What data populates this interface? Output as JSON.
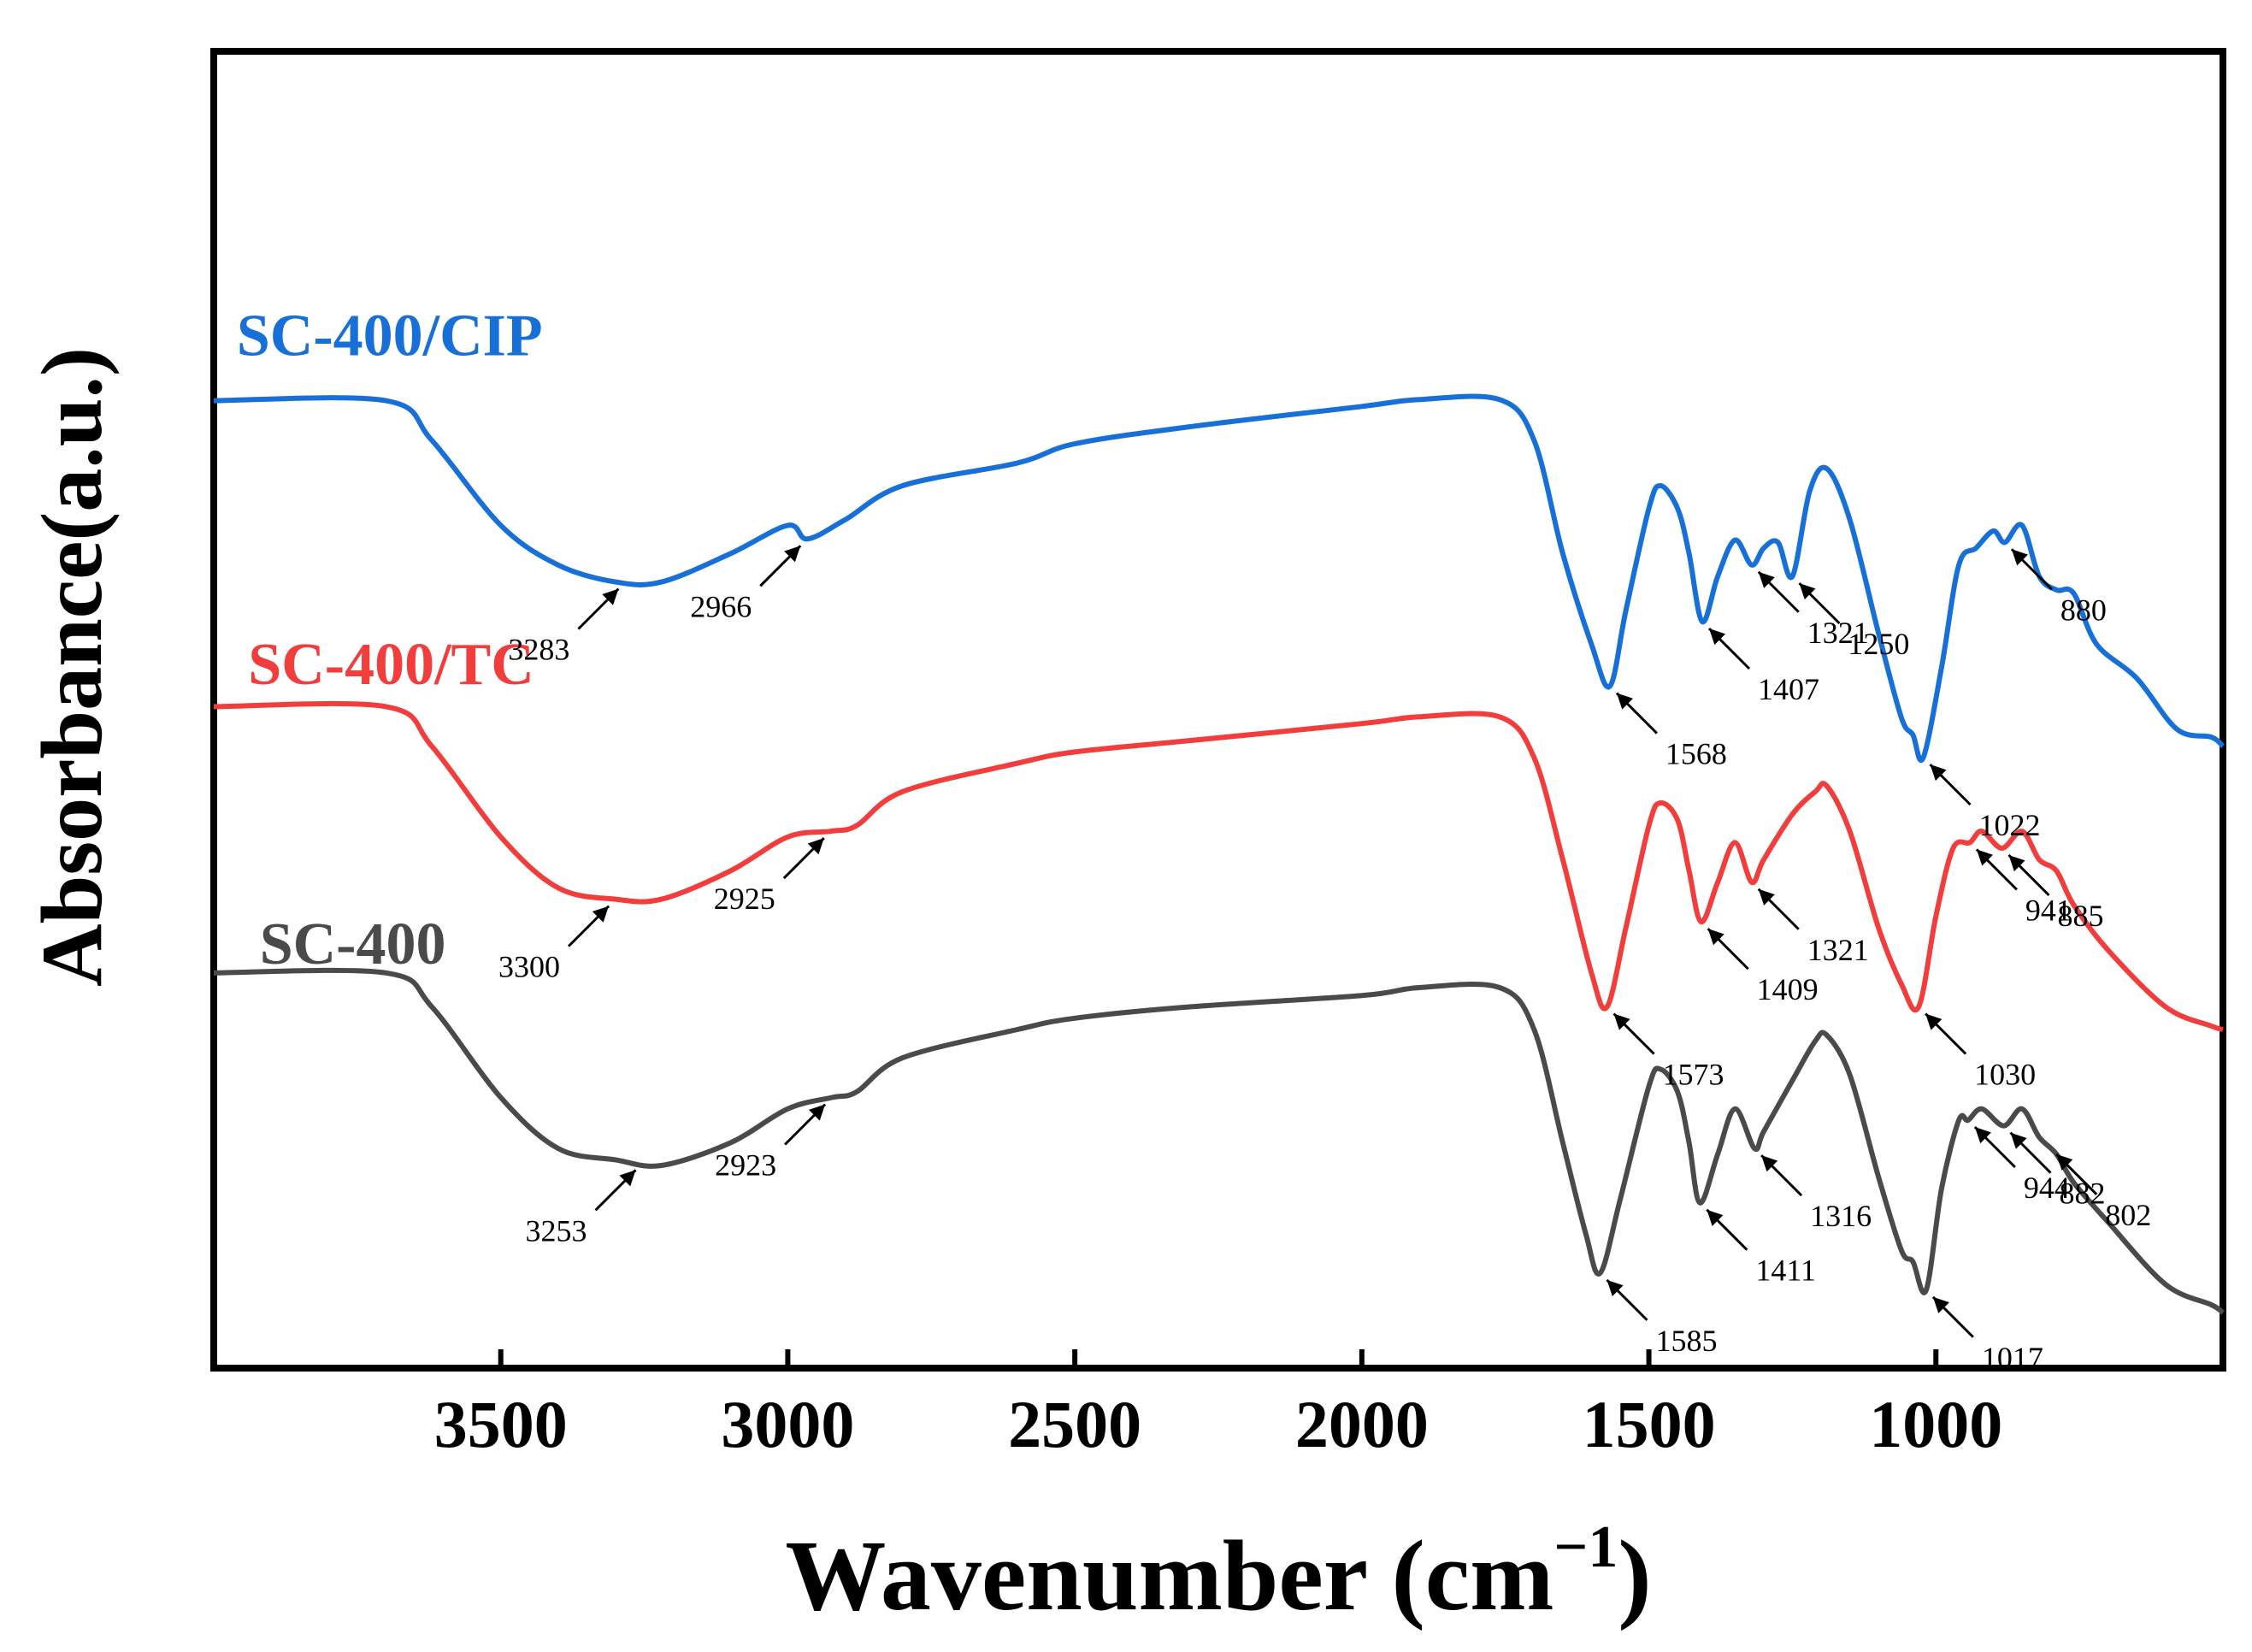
{
  "chart_data": {
    "type": "line",
    "title": "",
    "xlabel": "Wavenumber (cm",
    "xlabel_superscript": "−1",
    "xlabel_close": ")",
    "ylabel": "Absorbance(a.u.)",
    "xlim": [
      4000,
      500
    ],
    "x_reversed": true,
    "x_ticks": [
      3500,
      3000,
      2500,
      2000,
      1500,
      1000
    ],
    "x_tick_labels": [
      "3500",
      "3000",
      "2500",
      "2000",
      "1500",
      "1000"
    ],
    "y_ticks_shown": false,
    "grid": false,
    "legend": "inline labels above each curve",
    "y_units": "arbitrary, stacked offset",
    "ylim": [
      0,
      1
    ],
    "series": [
      {
        "name": "SC-400/CIP",
        "color": "#1670d8",
        "label_at": {
          "x": 3960,
          "y": 0.875
        },
        "points": [
          [
            4000,
            0.835
          ],
          [
            3700,
            0.835
          ],
          [
            3620,
            0.8
          ],
          [
            3500,
            0.725
          ],
          [
            3400,
            0.69
          ],
          [
            3300,
            0.675
          ],
          [
            3220,
            0.675
          ],
          [
            3100,
            0.7
          ],
          [
            3000,
            0.725
          ],
          [
            2966,
            0.713
          ],
          [
            2900,
            0.73
          ],
          [
            2800,
            0.76
          ],
          [
            2600,
            0.78
          ],
          [
            2500,
            0.797
          ],
          [
            2300,
            0.812
          ],
          [
            2000,
            0.83
          ],
          [
            1900,
            0.836
          ],
          [
            1760,
            0.836
          ],
          [
            1700,
            0.8
          ],
          [
            1650,
            0.7
          ],
          [
            1600,
            0.62
          ],
          [
            1568,
            0.583
          ],
          [
            1540,
            0.65
          ],
          [
            1500,
            0.74
          ],
          [
            1480,
            0.76
          ],
          [
            1450,
            0.74
          ],
          [
            1430,
            0.7
          ],
          [
            1407,
            0.64
          ],
          [
            1380,
            0.68
          ],
          [
            1350,
            0.712
          ],
          [
            1321,
            0.69
          ],
          [
            1300,
            0.705
          ],
          [
            1275,
            0.71
          ],
          [
            1250,
            0.68
          ],
          [
            1220,
            0.755
          ],
          [
            1190,
            0.775
          ],
          [
            1150,
            0.73
          ],
          [
            1100,
            0.63
          ],
          [
            1060,
            0.555
          ],
          [
            1040,
            0.54
          ],
          [
            1022,
            0.52
          ],
          [
            990,
            0.6
          ],
          [
            960,
            0.69
          ],
          [
            930,
            0.705
          ],
          [
            900,
            0.72
          ],
          [
            880,
            0.71
          ],
          [
            850,
            0.725
          ],
          [
            820,
            0.68
          ],
          [
            790,
            0.668
          ],
          [
            760,
            0.665
          ],
          [
            720,
            0.62
          ],
          [
            650,
            0.59
          ],
          [
            580,
            0.545
          ],
          [
            520,
            0.538
          ],
          [
            500,
            0.53
          ]
        ],
        "peaks": [
          {
            "label": "3283",
            "x": 3283
          },
          {
            "label": "2966",
            "x": 2966
          },
          {
            "label": "1568",
            "x": 1568
          },
          {
            "label": "1407",
            "x": 1407
          },
          {
            "label": "1321",
            "x": 1321
          },
          {
            "label": "1250",
            "x": 1250
          },
          {
            "label": "880",
            "x": 880
          },
          {
            "label": "1022",
            "x": 1022
          }
        ]
      },
      {
        "name": "SC-400/TC",
        "color": "#f23d3d",
        "label_at": {
          "x": 3940,
          "y": 0.585
        },
        "points": [
          [
            4000,
            0.565
          ],
          [
            3700,
            0.565
          ],
          [
            3620,
            0.53
          ],
          [
            3500,
            0.45
          ],
          [
            3400,
            0.405
          ],
          [
            3300,
            0.395
          ],
          [
            3220,
            0.395
          ],
          [
            3100,
            0.42
          ],
          [
            3000,
            0.45
          ],
          [
            2925,
            0.455
          ],
          [
            2880,
            0.46
          ],
          [
            2800,
            0.49
          ],
          [
            2600,
            0.515
          ],
          [
            2500,
            0.525
          ],
          [
            2300,
            0.535
          ],
          [
            2000,
            0.55
          ],
          [
            1900,
            0.556
          ],
          [
            1760,
            0.556
          ],
          [
            1700,
            0.52
          ],
          [
            1650,
            0.43
          ],
          [
            1600,
            0.33
          ],
          [
            1573,
            0.3
          ],
          [
            1540,
            0.37
          ],
          [
            1500,
            0.46
          ],
          [
            1480,
            0.48
          ],
          [
            1450,
            0.465
          ],
          [
            1430,
            0.42
          ],
          [
            1409,
            0.375
          ],
          [
            1380,
            0.41
          ],
          [
            1350,
            0.445
          ],
          [
            1321,
            0.41
          ],
          [
            1300,
            0.43
          ],
          [
            1250,
            0.47
          ],
          [
            1210,
            0.49
          ],
          [
            1190,
            0.495
          ],
          [
            1150,
            0.455
          ],
          [
            1100,
            0.37
          ],
          [
            1060,
            0.32
          ],
          [
            1030,
            0.3
          ],
          [
            1000,
            0.38
          ],
          [
            970,
            0.44
          ],
          [
            941,
            0.445
          ],
          [
            920,
            0.455
          ],
          [
            885,
            0.44
          ],
          [
            850,
            0.455
          ],
          [
            820,
            0.43
          ],
          [
            790,
            0.42
          ],
          [
            760,
            0.39
          ],
          [
            700,
            0.35
          ],
          [
            600,
            0.3
          ],
          [
            520,
            0.283
          ],
          [
            500,
            0.28
          ]
        ],
        "peaks": [
          {
            "label": "3300",
            "x": 3300
          },
          {
            "label": "2925",
            "x": 2925
          },
          {
            "label": "1573",
            "x": 1573
          },
          {
            "label": "1409",
            "x": 1409
          },
          {
            "label": "1321",
            "x": 1321
          },
          {
            "label": "941",
            "x": 941
          },
          {
            "label": "885",
            "x": 885
          },
          {
            "label": "1030",
            "x": 1030
          }
        ]
      },
      {
        "name": "SC-400",
        "color": "#4a4a4a",
        "label_at": {
          "x": 3920,
          "y": 0.338
        },
        "points": [
          [
            4000,
            0.33
          ],
          [
            3700,
            0.33
          ],
          [
            3620,
            0.3
          ],
          [
            3500,
            0.22
          ],
          [
            3400,
            0.175
          ],
          [
            3300,
            0.165
          ],
          [
            3220,
            0.16
          ],
          [
            3100,
            0.18
          ],
          [
            3000,
            0.21
          ],
          [
            2923,
            0.22
          ],
          [
            2880,
            0.225
          ],
          [
            2800,
            0.255
          ],
          [
            2600,
            0.28
          ],
          [
            2500,
            0.29
          ],
          [
            2300,
            0.3
          ],
          [
            2000,
            0.31
          ],
          [
            1900,
            0.317
          ],
          [
            1760,
            0.317
          ],
          [
            1700,
            0.28
          ],
          [
            1650,
            0.18
          ],
          [
            1610,
            0.1
          ],
          [
            1585,
            0.065
          ],
          [
            1550,
            0.13
          ],
          [
            1500,
            0.23
          ],
          [
            1480,
            0.245
          ],
          [
            1450,
            0.225
          ],
          [
            1430,
            0.18
          ],
          [
            1411,
            0.127
          ],
          [
            1380,
            0.17
          ],
          [
            1350,
            0.21
          ],
          [
            1316,
            0.175
          ],
          [
            1300,
            0.19
          ],
          [
            1250,
            0.235
          ],
          [
            1210,
            0.27
          ],
          [
            1190,
            0.275
          ],
          [
            1150,
            0.24
          ],
          [
            1100,
            0.15
          ],
          [
            1060,
            0.085
          ],
          [
            1040,
            0.075
          ],
          [
            1017,
            0.05
          ],
          [
            990,
            0.14
          ],
          [
            960,
            0.2
          ],
          [
            944,
            0.2
          ],
          [
            920,
            0.21
          ],
          [
            882,
            0.195
          ],
          [
            850,
            0.21
          ],
          [
            820,
            0.185
          ],
          [
            790,
            0.17
          ],
          [
            760,
            0.145
          ],
          [
            700,
            0.11
          ],
          [
            600,
            0.055
          ],
          [
            520,
            0.037
          ],
          [
            500,
            0.03
          ]
        ],
        "peaks": [
          {
            "label": "3253",
            "x": 3253
          },
          {
            "label": "2923",
            "x": 2923
          },
          {
            "label": "1585",
            "x": 1585
          },
          {
            "label": "1411",
            "x": 1411
          },
          {
            "label": "1316",
            "x": 1316
          },
          {
            "label": "944",
            "x": 944
          },
          {
            "label": "882",
            "x": 882
          },
          {
            "label": "802",
            "x": 802
          },
          {
            "label": "1017",
            "x": 1017
          }
        ]
      }
    ]
  }
}
